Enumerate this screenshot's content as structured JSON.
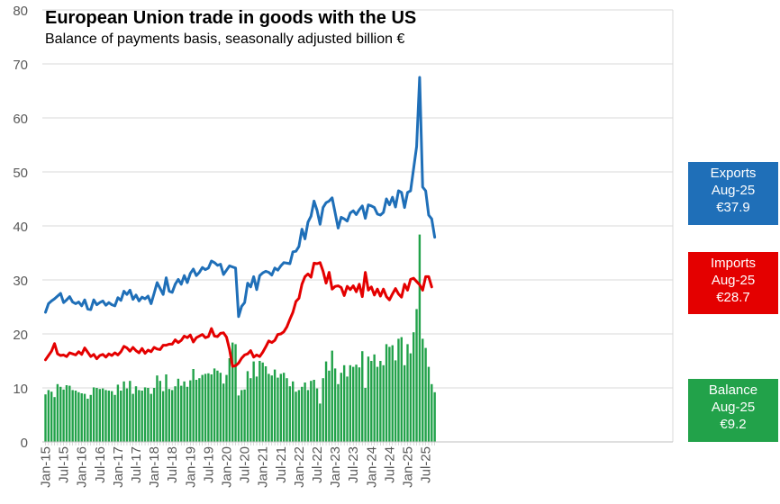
{
  "chart_data": {
    "type": "line+bar",
    "title": "European Union trade in goods with the US",
    "subtitle": "Balance of payments basis, seasonally adjusted billion €",
    "ylim": [
      0,
      80
    ],
    "yticks": [
      0,
      10,
      20,
      30,
      40,
      50,
      60,
      70,
      80
    ],
    "grid": true,
    "x_start": "Jan-15",
    "x_end": "Aug-25",
    "x_tick_labels": [
      "Jan-15",
      "Jul-15",
      "Jan-16",
      "Jul-16",
      "Jan-17",
      "Jul-17",
      "Jan-18",
      "Jul-18",
      "Jan-19",
      "Jul-19",
      "Jan-20",
      "Jul-20",
      "Jan-21",
      "Jul-21",
      "Jan-22",
      "Jul-22",
      "Jan-23",
      "Jul-23",
      "Jan-24",
      "Jul-24",
      "Jan-25",
      "Jul-25"
    ],
    "series": [
      {
        "name": "Exports",
        "kind": "line",
        "color": "#1f6fb8",
        "values": [
          24.0,
          25.6,
          26.1,
          26.5,
          27.0,
          27.5,
          25.8,
          26.3,
          26.9,
          25.9,
          25.6,
          25.9,
          25.2,
          26.3,
          24.6,
          24.5,
          26.3,
          25.4,
          25.8,
          26.1,
          25.3,
          25.8,
          25.4,
          25.2,
          26.7,
          26.2,
          27.9,
          27.3,
          28.1,
          26.4,
          27.2,
          26.1,
          26.8,
          26.5,
          27.0,
          25.6,
          27.5,
          29.5,
          28.4,
          27.3,
          30.4,
          27.9,
          27.7,
          29.2,
          30.1,
          29.2,
          30.8,
          29.5,
          31.2,
          32.0,
          30.8,
          31.4,
          32.3,
          31.9,
          32.2,
          33.5,
          33.2,
          32.7,
          32.9,
          31.0,
          31.8,
          32.6,
          32.4,
          32.2,
          23.2,
          25.1,
          25.8,
          29.4,
          28.7,
          30.6,
          28.2,
          30.8,
          31.3,
          31.6,
          31.4,
          30.9,
          32.2,
          31.8,
          32.6,
          33.2,
          33.1,
          33.0,
          35.2,
          35.3,
          36.2,
          39.4,
          37.6,
          40.7,
          41.8,
          44.6,
          42.9,
          40.3,
          43.4,
          44.3,
          44.6,
          45.2,
          42.4,
          39.6,
          41.6,
          41.3,
          40.9,
          42.4,
          42.8,
          42.1,
          43.0,
          43.7,
          41.4,
          43.9,
          43.7,
          43.4,
          42.2,
          42.0,
          42.5,
          45.0,
          43.9,
          45.3,
          43.5,
          46.5,
          46.2,
          43.4,
          46.2,
          46.5,
          50.6,
          54.7,
          67.5,
          47.2,
          46.5,
          42.0,
          41.3,
          37.9
        ]
      },
      {
        "name": "Imports",
        "kind": "line",
        "color": "#e40000",
        "values": [
          15.2,
          16.0,
          16.8,
          18.2,
          16.3,
          16.0,
          16.1,
          15.8,
          16.5,
          16.3,
          16.1,
          16.7,
          16.2,
          17.4,
          16.6,
          15.8,
          16.2,
          15.4,
          16.0,
          16.2,
          15.7,
          16.3,
          16.0,
          16.5,
          16.1,
          16.7,
          17.7,
          17.4,
          16.8,
          17.5,
          16.9,
          16.5,
          17.3,
          16.4,
          17.0,
          16.7,
          17.5,
          17.2,
          17.1,
          17.9,
          17.9,
          18.1,
          18.1,
          18.9,
          18.4,
          18.8,
          19.6,
          19.3,
          19.8,
          18.5,
          19.3,
          19.6,
          19.9,
          19.3,
          19.5,
          21.0,
          19.6,
          19.5,
          20.1,
          20.2,
          19.4,
          17.1,
          14.0,
          14.1,
          14.6,
          15.5,
          16.1,
          16.3,
          16.9,
          15.7,
          16.1,
          15.8,
          16.6,
          17.6,
          18.7,
          18.4,
          18.8,
          19.9,
          20.0,
          20.4,
          21.3,
          22.7,
          24.0,
          26.0,
          26.6,
          29.2,
          30.6,
          31.1,
          30.5,
          33.1,
          33.0,
          33.2,
          31.6,
          29.4,
          31.4,
          28.3,
          28.8,
          28.9,
          28.6,
          27.1,
          28.8,
          28.2,
          28.9,
          27.8,
          29.2,
          26.9,
          31.4,
          28.1,
          28.7,
          27.2,
          28.3,
          27.0,
          28.3,
          26.9,
          26.3,
          27.4,
          28.4,
          27.4,
          26.8,
          29.2,
          28.1,
          30.1,
          30.3,
          29.7,
          29.1,
          28.1,
          30.6,
          30.6,
          28.7
        ]
      },
      {
        "name": "Balance",
        "kind": "bar",
        "color": "#22a24a",
        "values": [
          8.8,
          9.6,
          9.3,
          8.3,
          10.7,
          10.2,
          9.7,
          10.5,
          10.4,
          9.6,
          9.5,
          9.2,
          9.0,
          8.9,
          8.0,
          8.7,
          10.1,
          10.0,
          9.8,
          9.9,
          9.6,
          9.5,
          9.4,
          8.7,
          10.6,
          9.5,
          11.2,
          9.9,
          11.3,
          8.9,
          10.3,
          9.6,
          9.5,
          10.1,
          10.0,
          8.9,
          10.0,
          12.3,
          11.3,
          9.4,
          12.5,
          9.8,
          9.6,
          10.3,
          11.7,
          10.4,
          11.2,
          10.2,
          11.4,
          13.5,
          11.5,
          11.8,
          12.4,
          12.6,
          12.7,
          12.5,
          13.6,
          13.2,
          12.8,
          10.8,
          12.4,
          15.5,
          18.4,
          18.1,
          8.6,
          9.6,
          9.7,
          13.1,
          11.8,
          14.9,
          12.1,
          15.0,
          14.7,
          14.0,
          12.6,
          12.3,
          13.4,
          11.9,
          12.6,
          12.8,
          11.8,
          10.3,
          11.2,
          9.3,
          9.6,
          10.2,
          11.0,
          9.6,
          11.3,
          11.5,
          9.9,
          7.1,
          11.8,
          14.9,
          13.2,
          16.9,
          13.6,
          10.7,
          12.8,
          14.2,
          12.1,
          14.2,
          13.9,
          14.3,
          13.8,
          16.8,
          10.0,
          15.8,
          15.0,
          16.2,
          13.9,
          15.0,
          14.2,
          18.1,
          17.6,
          17.9,
          15.1,
          19.1,
          19.4,
          14.2,
          18.1,
          16.4,
          20.3,
          24.6,
          38.4,
          19.1,
          17.4,
          13.9,
          10.7,
          9.2
        ]
      }
    ],
    "annotations": [
      {
        "series": "Exports",
        "line1": "Exports",
        "line2": "Aug-25",
        "line3": "€37.9",
        "color": "#1f6fb8"
      },
      {
        "series": "Imports",
        "line1": "Imports",
        "line2": "Aug-25",
        "line3": "€28.7",
        "color": "#e40000"
      },
      {
        "series": "Balance",
        "line1": "Balance",
        "line2": "Aug-25",
        "line3": "€9.2",
        "color": "#22a24a"
      }
    ]
  }
}
